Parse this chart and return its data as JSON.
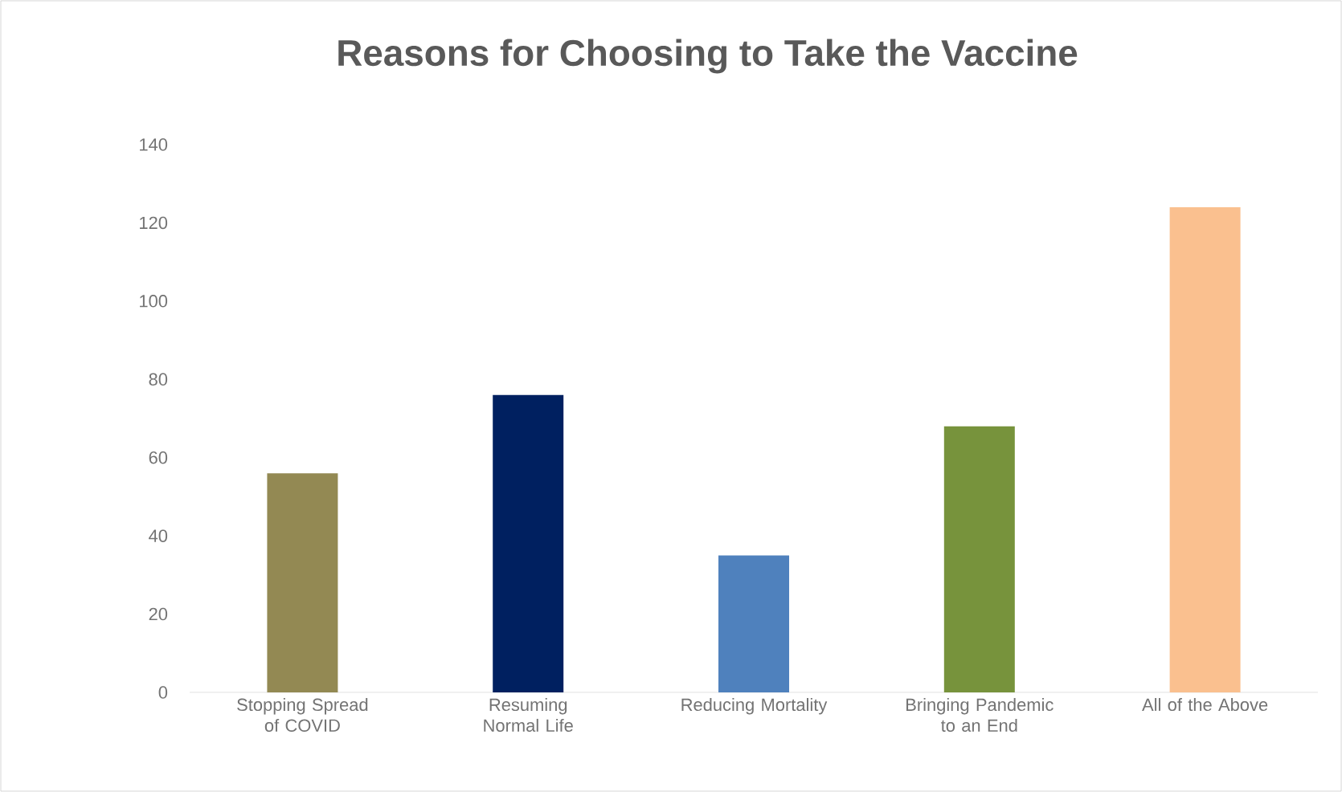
{
  "chart_data": {
    "type": "bar",
    "title": "Reasons for Choosing to Take the Vaccine",
    "categories": [
      "Stopping Spread of COVID",
      "Resuming Normal Life",
      "Reducing Mortality",
      "Bringing Pandemic to an End",
      "All of the Above"
    ],
    "values": [
      56,
      76,
      35,
      68,
      124
    ],
    "colors": [
      "#938953",
      "#002060",
      "#4f81bd",
      "#77933c",
      "#fac08f"
    ],
    "ylim": [
      0,
      140
    ],
    "yticks": [
      0,
      20,
      40,
      60,
      80,
      100,
      120,
      140
    ]
  }
}
